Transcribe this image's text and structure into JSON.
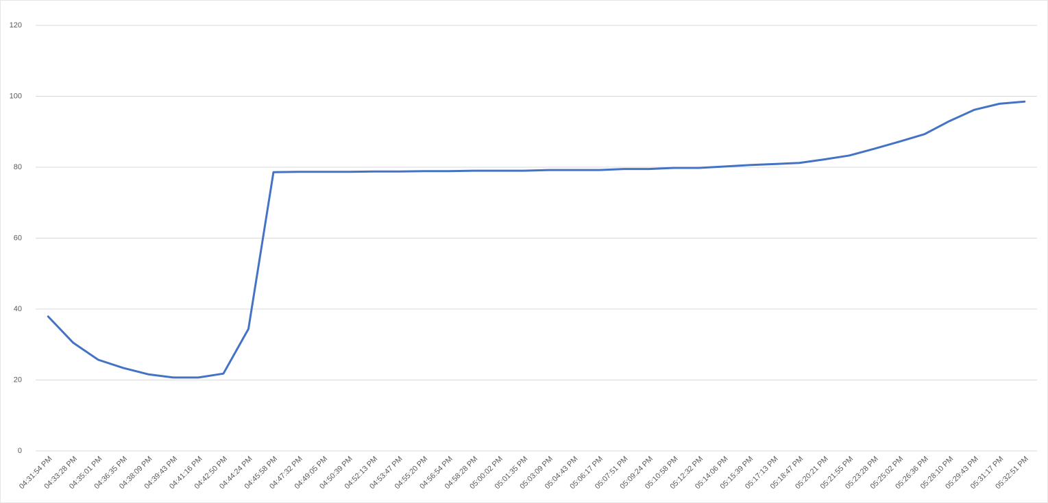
{
  "chart_data": {
    "type": "line",
    "categories": [
      "04:31:54 PM",
      "04:33:28 PM",
      "04:35:01 PM",
      "04:36:35 PM",
      "04:38:09 PM",
      "04:39:43 PM",
      "04:41:16 PM",
      "04:42:50 PM",
      "04:44:24 PM",
      "04:45:58 PM",
      "04:47:32 PM",
      "04:49:05 PM",
      "04:50:39 PM",
      "04:52:13 PM",
      "04:53:47 PM",
      "04:55:20 PM",
      "04:56:54 PM",
      "04:58:28 PM",
      "05:00:02 PM",
      "05:01:35 PM",
      "05:03:09 PM",
      "05:04:43 PM",
      "05:06:17 PM",
      "05:07:51 PM",
      "05:09:24 PM",
      "05:10:58 PM",
      "05:12:32 PM",
      "05:14:06 PM",
      "05:15:39 PM",
      "05:17:13 PM",
      "05:18:47 PM",
      "05:20:21 PM",
      "05:21:55 PM",
      "05:23:28 PM",
      "05:25:02 PM",
      "05:26:36 PM",
      "05:28:10 PM",
      "05:29:43 PM",
      "05:31:17 PM",
      "05:32:51 PM"
    ],
    "series": [
      {
        "color": "#4472c4",
        "values": [
          37.9,
          30.5,
          25.7,
          23.4,
          21.6,
          20.7,
          20.7,
          21.8,
          34.4,
          78.6,
          78.7,
          78.7,
          78.7,
          78.8,
          78.8,
          78.9,
          78.9,
          79.0,
          79.0,
          79.0,
          79.2,
          79.2,
          79.2,
          79.5,
          79.5,
          79.8,
          79.8,
          80.2,
          80.6,
          80.9,
          81.2,
          82.2,
          83.3,
          85.2,
          87.2,
          89.3,
          93.0,
          96.2,
          97.9,
          98.5
        ]
      }
    ],
    "ylim": [
      0,
      120
    ],
    "yticks": [
      0,
      20,
      40,
      60,
      80,
      100,
      120
    ],
    "grid": true
  }
}
